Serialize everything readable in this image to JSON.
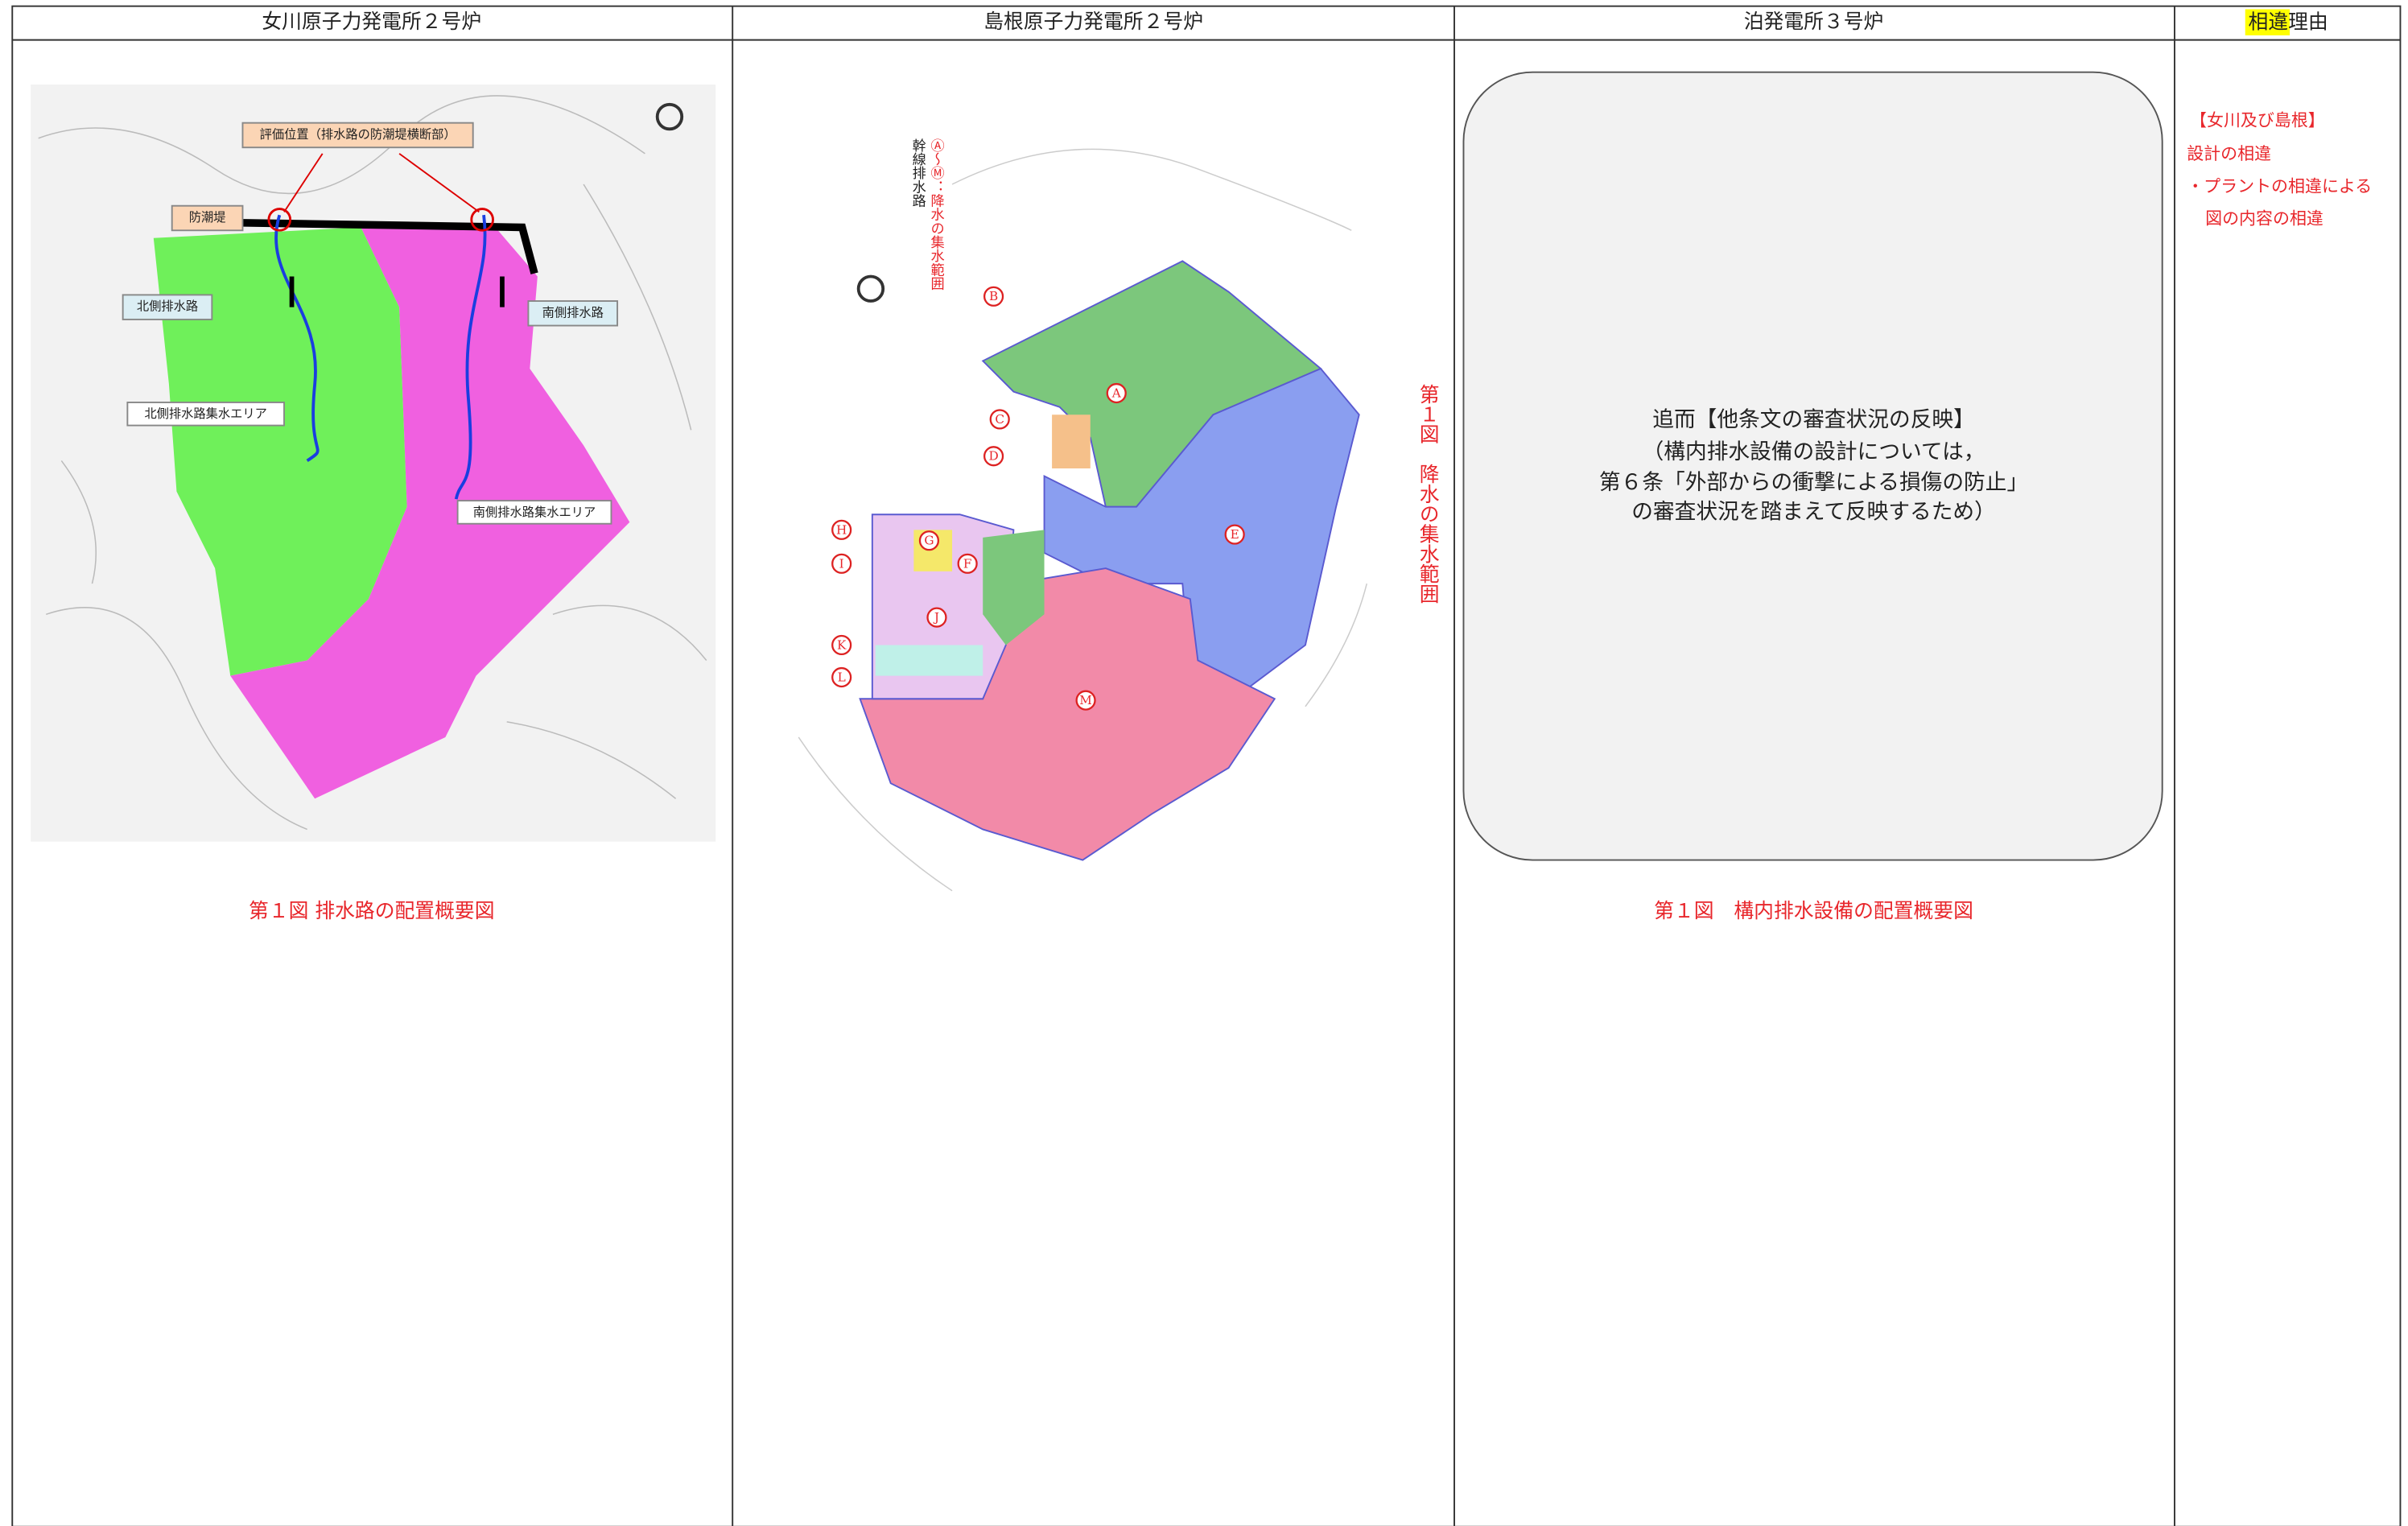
{
  "header": {
    "columns": [
      "女川原子力発電所２号炉",
      "島根原子力発電所２号炉",
      "泊発電所３号炉"
    ],
    "reason_highlight": "相違",
    "reason_rest": "理由"
  },
  "onagawa": {
    "labels": {
      "eval": "評価位置（排水路の防潮堤横断部）",
      "seawall": "防潮堤",
      "north": "北側排水路",
      "south": "南側排水路",
      "north_area": "北側排水路集水エリア",
      "south_area": "南側排水路集水エリア"
    },
    "caption": "第１図 排水路の配置概要図"
  },
  "shimane": {
    "legend": [
      "幹線排水路",
      "Ⓐ～Ⓜ：降水の集水範囲"
    ],
    "zones": [
      "A",
      "B",
      "C",
      "D",
      "E",
      "F",
      "G",
      "H",
      "I",
      "J",
      "K",
      "L",
      "M"
    ],
    "side_caption": "第１図　降水の集水範囲"
  },
  "tomari": {
    "box_lines": [
      "追而【他条文の審査状況の反映】",
      "（構内排水設備の設計については，",
      "第６条「外部からの衝撃による損傷の防止」",
      "の審査状況を踏まえて反映するため）"
    ],
    "caption": "第１図　構内排水設備の配置概要図"
  },
  "reason": [
    "【女川及び島根】",
    "設計の相違",
    "・プラントの相違による",
    "図の内容の相違"
  ]
}
